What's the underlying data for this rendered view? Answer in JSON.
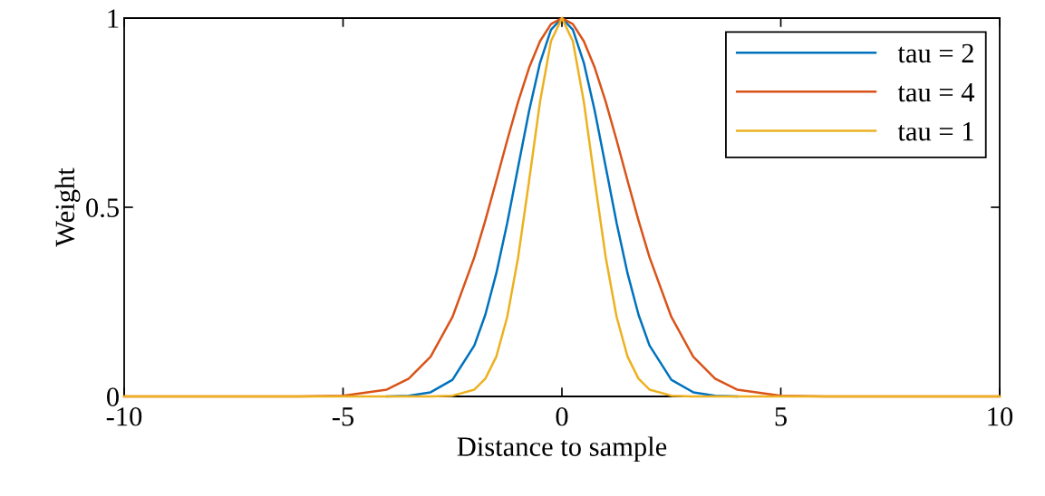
{
  "chart_data": {
    "type": "line",
    "xlabel": "Distance to sample",
    "ylabel": "Weight",
    "x": [
      -10,
      -6,
      -5,
      -4,
      -3.5,
      -3,
      -2.5,
      -2,
      -1.75,
      -1.5,
      -1.25,
      -1,
      -0.75,
      -0.5,
      -0.25,
      0,
      0.25,
      0.5,
      0.75,
      1,
      1.25,
      1.5,
      1.75,
      2,
      2.5,
      3,
      3.5,
      4,
      5,
      6,
      10
    ],
    "series": [
      {
        "name": "tau = 2",
        "color": "#0072bd",
        "values": [
          null,
          null,
          null,
          0,
          0.002,
          0.011,
          0.044,
          0.135,
          0.216,
          0.325,
          0.458,
          0.607,
          0.755,
          0.882,
          0.969,
          1,
          0.969,
          0.882,
          0.755,
          0.607,
          0.458,
          0.325,
          0.216,
          0.135,
          0.044,
          0.011,
          0.002,
          0,
          null,
          null,
          null
        ]
      },
      {
        "name": "tau = 4",
        "color": "#d95319",
        "values": [
          0,
          0,
          0.002,
          0.018,
          0.047,
          0.105,
          0.21,
          0.368,
          0.465,
          0.57,
          0.677,
          0.779,
          0.869,
          0.939,
          0.984,
          1,
          0.984,
          0.939,
          0.869,
          0.779,
          0.677,
          0.57,
          0.465,
          0.368,
          0.21,
          0.105,
          0.047,
          0.018,
          0.002,
          0,
          0
        ]
      },
      {
        "name": "tau = 1",
        "color": "#edb120",
        "values": [
          0,
          0,
          0,
          0,
          0,
          0,
          0.002,
          0.018,
          0.047,
          0.105,
          0.21,
          0.368,
          0.57,
          0.779,
          0.939,
          1,
          0.939,
          0.779,
          0.57,
          0.368,
          0.21,
          0.105,
          0.047,
          0.018,
          0.002,
          0,
          0,
          0,
          0,
          0,
          0
        ]
      }
    ],
    "xlim": [
      -10,
      10
    ],
    "ylim": [
      0,
      1
    ],
    "xticks": [
      -10,
      -5,
      0,
      5,
      10
    ],
    "yticks": [
      0,
      0.5,
      1
    ],
    "grid": false,
    "legend": "top right",
    "line_style": "solid",
    "marker": "none"
  }
}
